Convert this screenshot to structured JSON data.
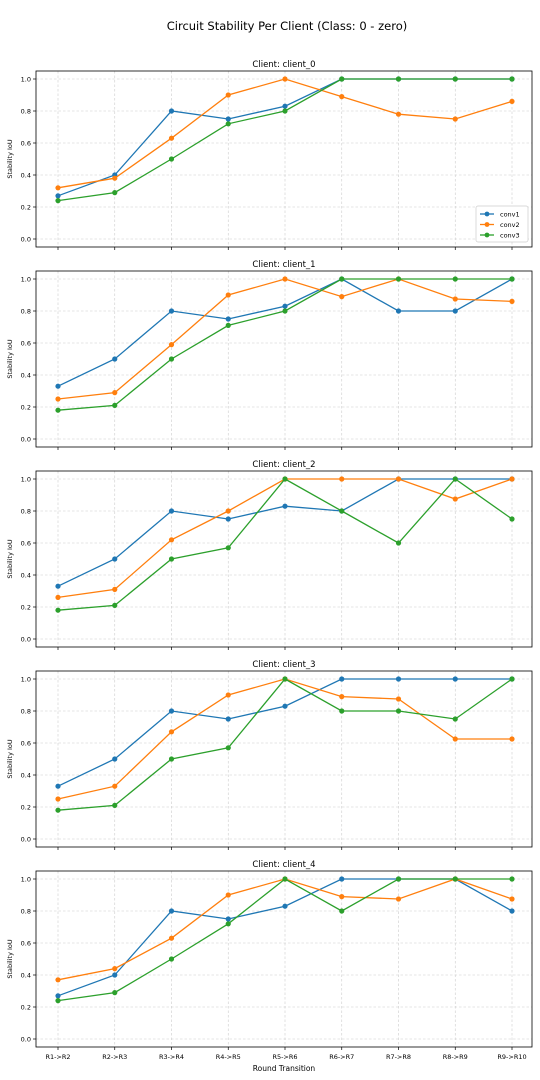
{
  "figure": {
    "title": "Circuit Stability Per Client (Class: 0 - zero)",
    "xlabel": "Round Transition",
    "ylabel": "Stability IoU"
  },
  "chart_data": [
    {
      "type": "line",
      "title": "Client: client_0",
      "xlabel": "",
      "ylabel": "Stability IoU",
      "categories": [
        "R1->R2",
        "R2->R3",
        "R3->R4",
        "R4->R5",
        "R5->R6",
        "R6->R7",
        "R7->R8",
        "R8->R9",
        "R9->R10"
      ],
      "ylim": [
        -0.05,
        1.05
      ],
      "yticks": [
        "0.0",
        "0.2",
        "0.4",
        "0.6",
        "0.8",
        "1.0"
      ],
      "grid": true,
      "legend": "lower-right",
      "series": [
        {
          "name": "conv1",
          "color": "#1f77b4",
          "values": [
            0.27,
            0.4,
            0.8,
            0.75,
            0.83,
            1.0,
            1.0,
            1.0,
            1.0
          ]
        },
        {
          "name": "conv2",
          "color": "#ff7f0e",
          "values": [
            0.32,
            0.38,
            0.63,
            0.9,
            1.0,
            0.89,
            0.78,
            0.75,
            0.86
          ]
        },
        {
          "name": "conv3",
          "color": "#2ca02c",
          "values": [
            0.24,
            0.29,
            0.5,
            0.72,
            0.8,
            1.0,
            1.0,
            1.0,
            1.0
          ]
        }
      ]
    },
    {
      "type": "line",
      "title": "Client: client_1",
      "xlabel": "",
      "ylabel": "Stability IoU",
      "categories": [
        "R1->R2",
        "R2->R3",
        "R3->R4",
        "R4->R5",
        "R5->R6",
        "R6->R7",
        "R7->R8",
        "R8->R9",
        "R9->R10"
      ],
      "ylim": [
        -0.05,
        1.05
      ],
      "yticks": [
        "0.0",
        "0.2",
        "0.4",
        "0.6",
        "0.8",
        "1.0"
      ],
      "grid": true,
      "series": [
        {
          "name": "conv1",
          "color": "#1f77b4",
          "values": [
            0.33,
            0.5,
            0.8,
            0.75,
            0.83,
            1.0,
            0.8,
            0.8,
            1.0
          ]
        },
        {
          "name": "conv2",
          "color": "#ff7f0e",
          "values": [
            0.25,
            0.29,
            0.59,
            0.9,
            1.0,
            0.89,
            1.0,
            0.875,
            0.86
          ]
        },
        {
          "name": "conv3",
          "color": "#2ca02c",
          "values": [
            0.18,
            0.21,
            0.5,
            0.71,
            0.8,
            1.0,
            1.0,
            1.0,
            1.0
          ]
        }
      ]
    },
    {
      "type": "line",
      "title": "Client: client_2",
      "xlabel": "",
      "ylabel": "Stability IoU",
      "categories": [
        "R1->R2",
        "R2->R3",
        "R3->R4",
        "R4->R5",
        "R5->R6",
        "R6->R7",
        "R7->R8",
        "R8->R9",
        "R9->R10"
      ],
      "ylim": [
        -0.05,
        1.05
      ],
      "yticks": [
        "0.0",
        "0.2",
        "0.4",
        "0.6",
        "0.8",
        "1.0"
      ],
      "grid": true,
      "series": [
        {
          "name": "conv1",
          "color": "#1f77b4",
          "values": [
            0.33,
            0.5,
            0.8,
            0.75,
            0.83,
            0.8,
            1.0,
            1.0,
            1.0
          ]
        },
        {
          "name": "conv2",
          "color": "#ff7f0e",
          "values": [
            0.26,
            0.31,
            0.62,
            0.8,
            1.0,
            1.0,
            1.0,
            0.875,
            1.0
          ]
        },
        {
          "name": "conv3",
          "color": "#2ca02c",
          "values": [
            0.18,
            0.21,
            0.5,
            0.57,
            1.0,
            0.8,
            0.6,
            1.0,
            0.75
          ]
        }
      ]
    },
    {
      "type": "line",
      "title": "Client: client_3",
      "xlabel": "",
      "ylabel": "Stability IoU",
      "categories": [
        "R1->R2",
        "R2->R3",
        "R3->R4",
        "R4->R5",
        "R5->R6",
        "R6->R7",
        "R7->R8",
        "R8->R9",
        "R9->R10"
      ],
      "ylim": [
        -0.05,
        1.05
      ],
      "yticks": [
        "0.0",
        "0.2",
        "0.4",
        "0.6",
        "0.8",
        "1.0"
      ],
      "grid": true,
      "series": [
        {
          "name": "conv1",
          "color": "#1f77b4",
          "values": [
            0.33,
            0.5,
            0.8,
            0.75,
            0.83,
            1.0,
            1.0,
            1.0,
            1.0
          ]
        },
        {
          "name": "conv2",
          "color": "#ff7f0e",
          "values": [
            0.25,
            0.33,
            0.67,
            0.9,
            1.0,
            0.89,
            0.875,
            0.625,
            0.625
          ]
        },
        {
          "name": "conv3",
          "color": "#2ca02c",
          "values": [
            0.18,
            0.21,
            0.5,
            0.57,
            1.0,
            0.8,
            0.8,
            0.75,
            1.0
          ]
        }
      ]
    },
    {
      "type": "line",
      "title": "Client: client_4",
      "xlabel": "Round Transition",
      "ylabel": "Stability IoU",
      "categories": [
        "R1->R2",
        "R2->R3",
        "R3->R4",
        "R4->R5",
        "R5->R6",
        "R6->R7",
        "R7->R8",
        "R8->R9",
        "R9->R10"
      ],
      "ylim": [
        -0.05,
        1.05
      ],
      "yticks": [
        "0.0",
        "0.2",
        "0.4",
        "0.6",
        "0.8",
        "1.0"
      ],
      "grid": true,
      "series": [
        {
          "name": "conv1",
          "color": "#1f77b4",
          "values": [
            0.27,
            0.4,
            0.8,
            0.75,
            0.83,
            1.0,
            1.0,
            1.0,
            0.8
          ]
        },
        {
          "name": "conv2",
          "color": "#ff7f0e",
          "values": [
            0.37,
            0.44,
            0.63,
            0.9,
            1.0,
            0.89,
            0.875,
            1.0,
            0.875
          ]
        },
        {
          "name": "conv3",
          "color": "#2ca02c",
          "values": [
            0.24,
            0.29,
            0.5,
            0.72,
            1.0,
            0.8,
            1.0,
            1.0,
            1.0
          ]
        }
      ]
    }
  ]
}
